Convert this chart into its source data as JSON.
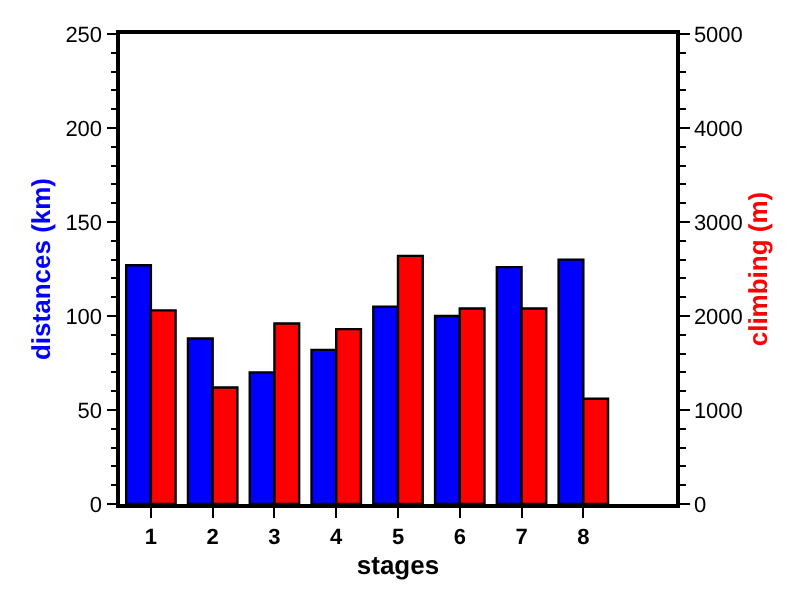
{
  "chart_data": {
    "type": "bar",
    "xlabel": "stages",
    "ylabel": "distances (km)",
    "y2label": "climbing (m)",
    "categories": [
      "1",
      "2",
      "3",
      "4",
      "5",
      "6",
      "7",
      "8",
      null
    ],
    "series": [
      {
        "name": null,
        "color": "#0000ff",
        "values": [
          127,
          88,
          70,
          82,
          105,
          100,
          126,
          130,
          null
        ]
      },
      {
        "name": null,
        "color": "#ff0000",
        "axis": "y2",
        "values": [
          2060,
          1240,
          1920,
          1860,
          2640,
          2080,
          2080,
          1120,
          null
        ]
      }
    ],
    "ylim": [
      0,
      250
    ],
    "yticks": [
      0,
      50,
      100,
      150,
      200,
      250
    ],
    "y2lim": [
      0,
      5000
    ],
    "y2ticks": [
      0,
      1000,
      2000,
      3000,
      4000,
      5000
    ],
    "legend": false
  }
}
